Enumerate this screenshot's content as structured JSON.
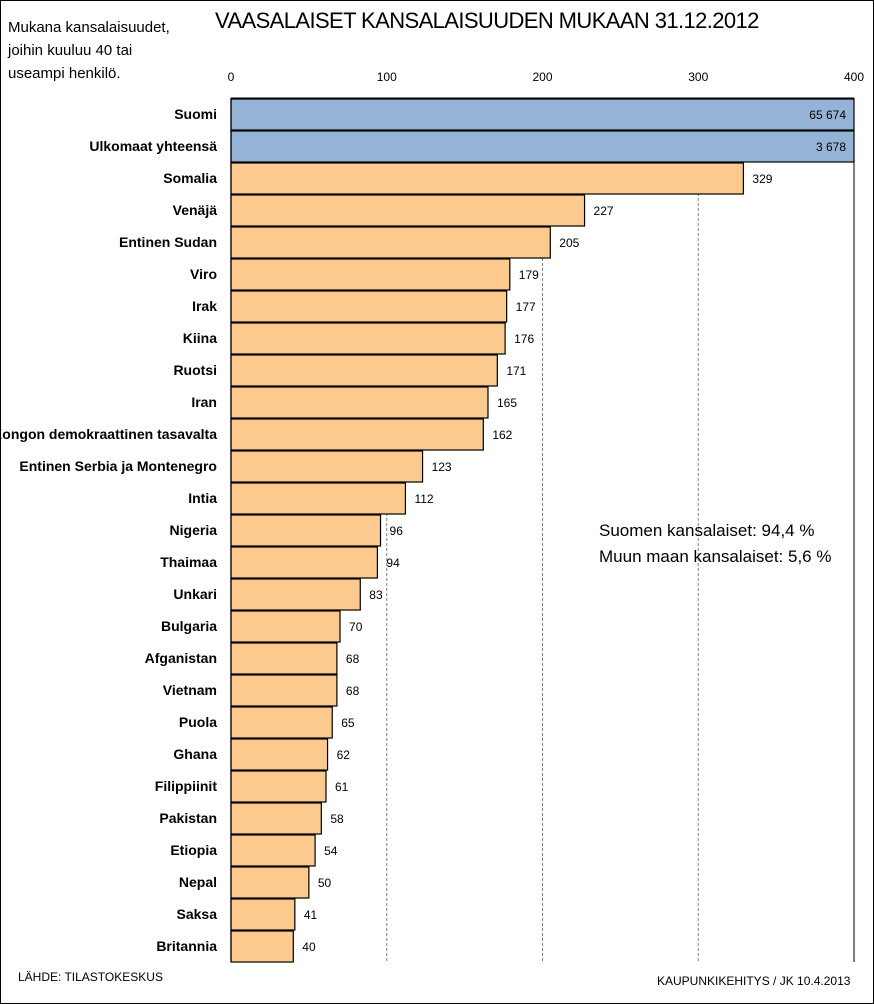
{
  "chart_data": {
    "type": "bar",
    "orientation": "horizontal",
    "title": "VAASALAISET KANSALAISUUDEN MUKAAN 31.12.2012",
    "note_lines": [
      "Mukana kansalaisuudet,",
      "joihin kuuluu  40 tai",
      "useampi henkilö."
    ],
    "xlim": [
      0,
      400
    ],
    "x_ticks": [
      0,
      100,
      200,
      300,
      400
    ],
    "grid": true,
    "categories": [
      "Suomi",
      "Ulkomaat yhteensä",
      "Somalia",
      "Venäjä",
      "Entinen Sudan",
      "Viro",
      "Irak",
      "Kiina",
      "Ruotsi",
      "Iran",
      "Kongon demokraattinen tasavalta",
      "Entinen Serbia ja Montenegro",
      "Intia",
      "Nigeria",
      "Thaimaa",
      "Unkari",
      "Bulgaria",
      "Afganistan",
      "Vietnam",
      "Puola",
      "Ghana",
      "Filippiinit",
      "Pakistan",
      "Etiopia",
      "Nepal",
      "Saksa",
      "Britannia"
    ],
    "values": [
      65674,
      3678,
      329,
      227,
      205,
      179,
      177,
      176,
      171,
      165,
      162,
      123,
      112,
      96,
      94,
      83,
      70,
      68,
      68,
      65,
      62,
      61,
      58,
      54,
      50,
      41,
      40
    ],
    "value_labels": [
      "65 674",
      "3 678",
      "329",
      "227",
      "205",
      "179",
      "177",
      "176",
      "171",
      "165",
      "162",
      "123",
      "112",
      "96",
      "94",
      "83",
      "70",
      "68",
      "68",
      "65",
      "62",
      "61",
      "58",
      "54",
      "50",
      "41",
      "40"
    ],
    "totals_count": 2,
    "colors": {
      "totals": "#95b3d7",
      "countries": "#fcc98f",
      "outline": "#000000",
      "grid": "#808080"
    }
  },
  "annotation": {
    "finnish": "Suomen kansalaiset:  94,4 %",
    "foreign": "Muun maan kansalaiset:  5,6 %"
  },
  "footer": {
    "source": "LÄHDE: TILASTOKESKUS",
    "credit": "KAUPUNKIKEHITYS  / JK 10.4.2013"
  }
}
